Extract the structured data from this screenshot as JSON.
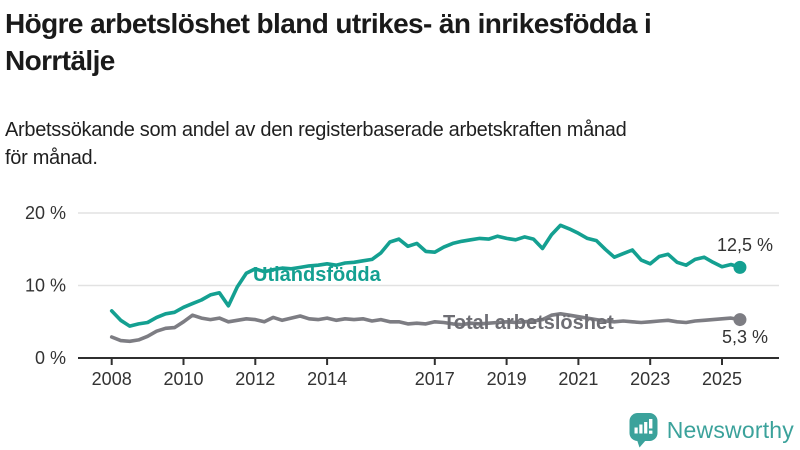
{
  "header": {
    "title_lines": [
      "Högre arbetslöshet bland utrikes- än inrikesfödda i",
      "Norrtälje"
    ],
    "subtitle_lines": [
      "Arbetssökande som andel av den registerbaserade arbetskraften månad",
      "för månad."
    ]
  },
  "chart_data": {
    "type": "line",
    "title": "Högre arbetslöshet bland utrikes- än inrikesfödda i Norrtälje",
    "subtitle": "Arbetssökande som andel av den registerbaserade arbetskraften månad för månad.",
    "unit": "%",
    "grid": true,
    "x_axis": {
      "ticks": [
        2008,
        2010,
        2012,
        2014,
        2017,
        2019,
        2021,
        2023,
        2025
      ],
      "range_years": [
        2007.1,
        2026.6
      ]
    },
    "y_axis": {
      "ticks": [
        {
          "value": 20,
          "label": "20 %"
        },
        {
          "value": 10,
          "label": "10 %"
        },
        {
          "value": 0,
          "label": "0 %"
        }
      ],
      "range": [
        0,
        22.4
      ]
    },
    "x_start": 2008,
    "x_step": 0.25,
    "series": [
      {
        "name": "Utlandsfödda",
        "color": "#14a091",
        "label_color": "#14a091",
        "end_label": "12,5 %",
        "end_value": 12.5,
        "values": [
          6.5,
          5.2,
          4.4,
          4.7,
          4.9,
          5.6,
          6.1,
          6.3,
          7.0,
          7.5,
          8.0,
          8.7,
          9.0,
          7.2,
          9.8,
          11.7,
          12.3,
          11.9,
          12.2,
          12.4,
          12.3,
          12.5,
          12.7,
          12.8,
          13.0,
          12.8,
          13.1,
          13.2,
          13.4,
          13.6,
          14.5,
          16.0,
          16.4,
          15.4,
          15.8,
          14.7,
          14.6,
          15.3,
          15.8,
          16.1,
          16.3,
          16.5,
          16.4,
          16.8,
          16.5,
          16.3,
          16.7,
          16.4,
          15.1,
          17.0,
          18.3,
          17.8,
          17.2,
          16.5,
          16.2,
          15.0,
          13.9,
          14.4,
          14.9,
          13.5,
          13.0,
          14.0,
          14.3,
          13.2,
          12.8,
          13.6,
          13.9,
          13.2,
          12.6,
          12.9,
          12.5
        ]
      },
      {
        "name": "Total arbetslöshet",
        "color": "#7d7d83",
        "label_color": "#6e6e74",
        "end_label": "5,3 %",
        "end_value": 5.3,
        "values": [
          2.9,
          2.4,
          2.3,
          2.5,
          3.0,
          3.7,
          4.1,
          4.2,
          5.0,
          5.9,
          5.5,
          5.3,
          5.5,
          5.0,
          5.2,
          5.4,
          5.3,
          5.0,
          5.6,
          5.2,
          5.5,
          5.8,
          5.4,
          5.3,
          5.5,
          5.2,
          5.4,
          5.3,
          5.4,
          5.1,
          5.3,
          5.0,
          5.0,
          4.7,
          4.8,
          4.7,
          5.0,
          4.9,
          4.7,
          4.6,
          4.8,
          4.7,
          4.8,
          4.9,
          5.0,
          4.9,
          5.0,
          5.1,
          5.3,
          5.9,
          6.1,
          5.9,
          5.7,
          5.5,
          5.3,
          5.1,
          5.0,
          5.1,
          5.0,
          4.9,
          5.0,
          5.1,
          5.2,
          5.0,
          4.9,
          5.1,
          5.2,
          5.3,
          5.4,
          5.5,
          5.3
        ]
      }
    ]
  },
  "footer": {
    "brand": "Newsworthy",
    "brand_color": "#3ba29b",
    "logo_icon": "bar-chart-speech-bubble-icon"
  }
}
